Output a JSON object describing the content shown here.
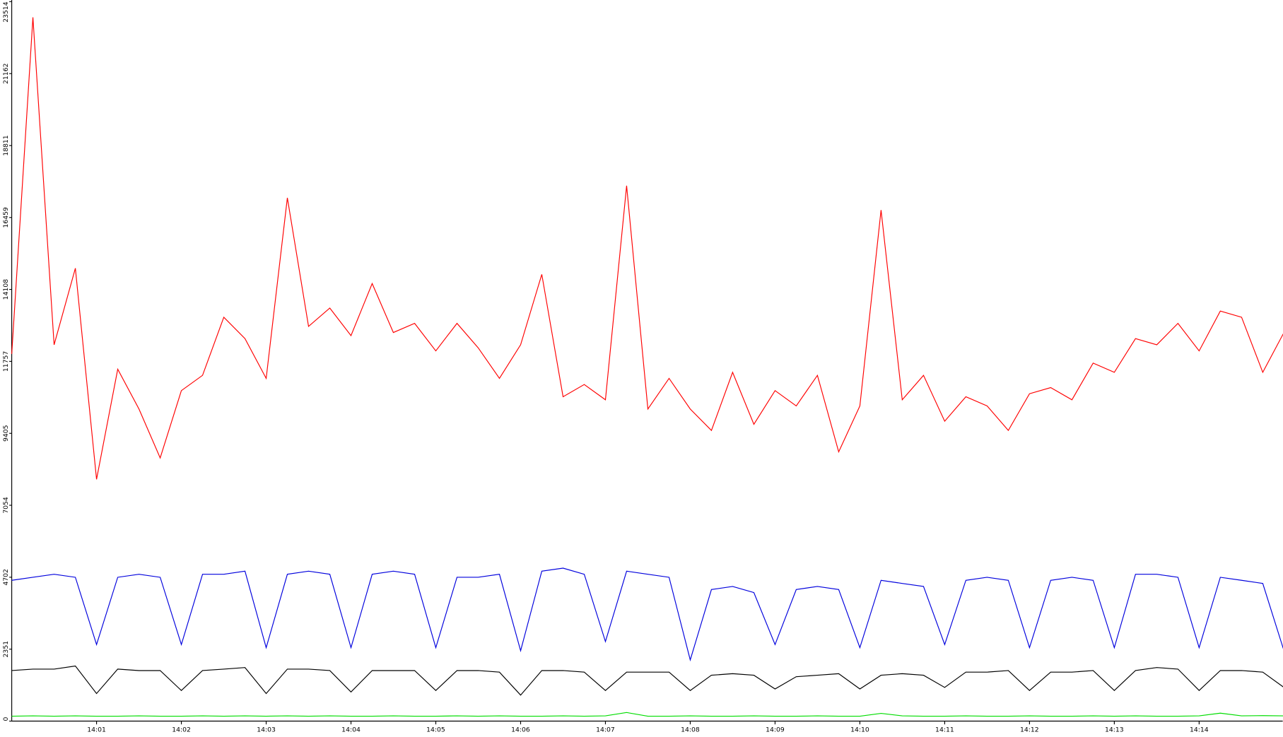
{
  "chart_data": {
    "type": "line",
    "x": [
      0,
      0.25,
      0.5,
      0.75,
      1,
      1.25,
      1.5,
      1.75,
      2,
      2.25,
      2.5,
      2.75,
      3,
      3.25,
      3.5,
      3.75,
      4,
      4.25,
      4.5,
      4.75,
      5,
      5.25,
      5.5,
      5.75,
      6,
      6.25,
      6.5,
      6.75,
      7,
      7.25,
      7.5,
      7.75,
      8,
      8.25,
      8.5,
      8.75,
      9,
      9.25,
      9.5,
      9.75,
      10,
      10.25,
      10.5,
      10.75,
      11,
      11.25,
      11.5,
      11.75,
      12,
      12.25,
      12.5,
      12.75,
      13,
      13.25,
      13.5,
      13.75,
      14,
      14.25,
      14.5,
      14.75,
      15
    ],
    "series": [
      {
        "color": "#ff0000",
        "values": [
          12000,
          23000,
          12300,
          14800,
          7900,
          11500,
          10200,
          8600,
          10800,
          11300,
          13200,
          12500,
          11200,
          17100,
          12900,
          13500,
          12600,
          14300,
          12700,
          13000,
          12100,
          13000,
          12200,
          11200,
          12300,
          14600,
          10600,
          11000,
          10500,
          17500,
          10200,
          11200,
          10200,
          9500,
          11400,
          9700,
          10800,
          10300,
          11300,
          8800,
          10300,
          16700,
          10500,
          11300,
          9800,
          10600,
          10300,
          9500,
          10700,
          10900,
          10500,
          11700,
          11400,
          12500,
          12300,
          13000,
          12100,
          13400,
          13200,
          11400,
          12700
        ]
      },
      {
        "color": "#0000dd",
        "values": [
          4600,
          4700,
          4800,
          4700,
          2500,
          4700,
          4800,
          4700,
          2500,
          4800,
          4800,
          4900,
          2400,
          4800,
          4900,
          4800,
          2400,
          4800,
          4900,
          4800,
          2400,
          4700,
          4700,
          4800,
          2300,
          4900,
          5000,
          4800,
          2600,
          4900,
          4800,
          4700,
          2000,
          4300,
          4400,
          4200,
          2500,
          4300,
          4400,
          4300,
          2400,
          4600,
          4500,
          4400,
          2500,
          4600,
          4700,
          4600,
          2400,
          4600,
          4700,
          4600,
          2400,
          4800,
          4800,
          4700,
          2400,
          4700,
          4600,
          4500,
          2300
        ]
      },
      {
        "color": "#000000",
        "values": [
          1650,
          1700,
          1700,
          1800,
          900,
          1700,
          1650,
          1650,
          1000,
          1650,
          1700,
          1750,
          900,
          1700,
          1700,
          1650,
          950,
          1650,
          1650,
          1650,
          1000,
          1650,
          1650,
          1600,
          850,
          1650,
          1650,
          1600,
          1000,
          1600,
          1600,
          1600,
          1000,
          1500,
          1550,
          1500,
          1050,
          1450,
          1500,
          1550,
          1050,
          1500,
          1550,
          1500,
          1100,
          1600,
          1600,
          1650,
          1000,
          1600,
          1600,
          1650,
          1000,
          1650,
          1750,
          1700,
          1000,
          1650,
          1650,
          1600,
          1100
        ]
      },
      {
        "color": "#00dd00",
        "values": [
          160,
          170,
          160,
          170,
          160,
          160,
          170,
          160,
          160,
          170,
          160,
          170,
          160,
          170,
          160,
          170,
          160,
          160,
          170,
          160,
          160,
          170,
          160,
          170,
          160,
          160,
          170,
          160,
          170,
          280,
          160,
          160,
          170,
          160,
          160,
          170,
          160,
          160,
          170,
          160,
          160,
          250,
          170,
          160,
          160,
          170,
          160,
          160,
          170,
          160,
          160,
          170,
          160,
          170,
          160,
          160,
          170,
          260,
          170,
          180,
          170
        ]
      }
    ],
    "xlim": [
      0,
      15
    ],
    "xticks": [
      {
        "value": 1,
        "label": "14:01"
      },
      {
        "value": 2,
        "label": "14:02"
      },
      {
        "value": 3,
        "label": "14:03"
      },
      {
        "value": 4,
        "label": "14:04"
      },
      {
        "value": 5,
        "label": "14:05"
      },
      {
        "value": 6,
        "label": "14:06"
      },
      {
        "value": 7,
        "label": "14:07"
      },
      {
        "value": 8,
        "label": "14:08"
      },
      {
        "value": 9,
        "label": "14:09"
      },
      {
        "value": 10,
        "label": "14:10"
      },
      {
        "value": 11,
        "label": "14:11"
      },
      {
        "value": 12,
        "label": "14:12"
      },
      {
        "value": 13,
        "label": "14:13"
      },
      {
        "value": 14,
        "label": "14:14"
      }
    ],
    "ylim": [
      0,
      23514
    ],
    "yticks": [
      0,
      2351,
      4702,
      7054,
      9405,
      11757,
      14108,
      16459,
      18811,
      21162,
      23514
    ]
  }
}
